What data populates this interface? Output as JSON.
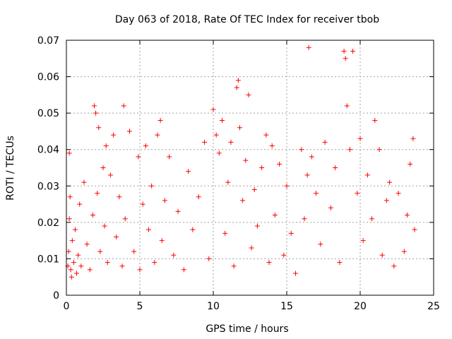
{
  "chart_data": {
    "type": "scatter",
    "title": "Day 063 of 2018, Rate Of TEC Index for receiver tbob",
    "xlabel": "GPS time / hours",
    "ylabel": "ROTI / TECUs",
    "xlim": [
      0,
      25
    ],
    "ylim": [
      0,
      0.07
    ],
    "xticks": [
      0,
      5,
      10,
      15,
      20,
      25
    ],
    "xtick_labels": [
      "0",
      "5",
      "10",
      "15",
      "20",
      "25"
    ],
    "yticks": [
      0,
      0.01,
      0.02,
      0.03,
      0.04,
      0.05,
      0.06,
      0.07
    ],
    "ytick_labels": [
      "0",
      "0.01",
      "0.02",
      "0.03",
      "0.04",
      "0.05",
      "0.06",
      "0.07"
    ],
    "grid": true,
    "marker": "+",
    "color": "#ff0000",
    "series": [
      {
        "name": "ROTI",
        "x": [
          0.1,
          0.2,
          0.25,
          0.15,
          0.3,
          0.2,
          0.4,
          0.35,
          0.5,
          0.6,
          0.7,
          0.8,
          0.9,
          1.0,
          1.2,
          1.4,
          1.6,
          1.8,
          1.9,
          2.0,
          2.1,
          2.2,
          2.3,
          2.5,
          2.6,
          2.7,
          2.8,
          3.0,
          3.2,
          3.4,
          3.6,
          3.8,
          3.9,
          4.0,
          4.3,
          4.6,
          4.9,
          5.0,
          5.2,
          5.4,
          5.6,
          5.8,
          6.0,
          6.2,
          6.4,
          6.5,
          6.7,
          7.0,
          7.3,
          7.6,
          8.0,
          8.3,
          8.6,
          9.0,
          9.4,
          9.7,
          10.0,
          10.2,
          10.4,
          10.6,
          10.8,
          11.0,
          11.2,
          11.4,
          11.6,
          11.7,
          11.8,
          12.0,
          12.2,
          12.4,
          12.6,
          12.8,
          13.0,
          13.3,
          13.6,
          13.8,
          14.0,
          14.2,
          14.5,
          14.8,
          15.0,
          15.3,
          15.6,
          16.0,
          16.2,
          16.4,
          16.5,
          16.7,
          17.0,
          17.3,
          17.6,
          18.0,
          18.3,
          18.6,
          18.9,
          19.0,
          19.1,
          19.3,
          19.5,
          19.8,
          20.0,
          20.2,
          20.5,
          20.8,
          21.0,
          21.3,
          21.5,
          21.8,
          22.0,
          22.3,
          22.6,
          23.0,
          23.2,
          23.4,
          23.6,
          23.7
        ],
        "y": [
          0.008,
          0.039,
          0.027,
          0.012,
          0.007,
          0.021,
          0.015,
          0.005,
          0.009,
          0.018,
          0.006,
          0.011,
          0.025,
          0.008,
          0.031,
          0.014,
          0.007,
          0.022,
          0.052,
          0.05,
          0.028,
          0.046,
          0.012,
          0.035,
          0.019,
          0.041,
          0.009,
          0.033,
          0.044,
          0.016,
          0.027,
          0.008,
          0.052,
          0.021,
          0.045,
          0.012,
          0.038,
          0.007,
          0.025,
          0.041,
          0.018,
          0.03,
          0.009,
          0.044,
          0.048,
          0.015,
          0.026,
          0.038,
          0.011,
          0.023,
          0.007,
          0.034,
          0.018,
          0.027,
          0.042,
          0.01,
          0.051,
          0.044,
          0.039,
          0.048,
          0.017,
          0.031,
          0.042,
          0.008,
          0.057,
          0.059,
          0.046,
          0.026,
          0.037,
          0.055,
          0.013,
          0.029,
          0.019,
          0.035,
          0.044,
          0.009,
          0.041,
          0.022,
          0.036,
          0.011,
          0.03,
          0.017,
          0.006,
          0.04,
          0.021,
          0.033,
          0.068,
          0.038,
          0.028,
          0.014,
          0.042,
          0.024,
          0.035,
          0.009,
          0.067,
          0.065,
          0.052,
          0.04,
          0.067,
          0.028,
          0.043,
          0.015,
          0.033,
          0.021,
          0.048,
          0.04,
          0.011,
          0.026,
          0.031,
          0.008,
          0.028,
          0.012,
          0.022,
          0.036,
          0.043,
          0.018
        ]
      }
    ]
  }
}
